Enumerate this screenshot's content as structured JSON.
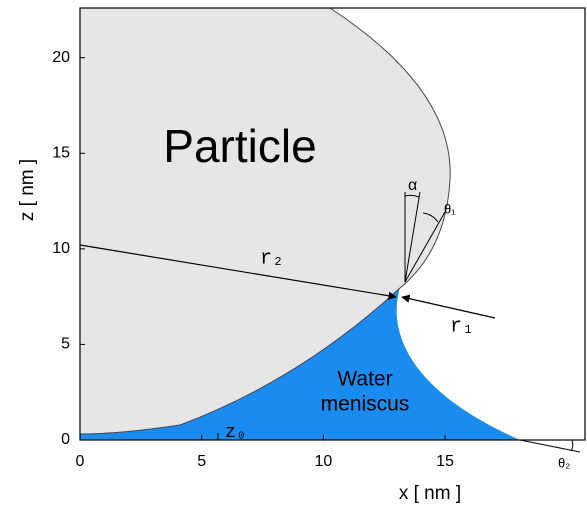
{
  "chart_data": {
    "type": "diagram",
    "xlabel": "x [ nm ]",
    "ylabel": "z [ nm ]",
    "xlim": [
      0,
      20.75
    ],
    "ylim": [
      0,
      22.6
    ],
    "xticks": [
      0,
      5,
      10,
      15
    ],
    "yticks": [
      0,
      5,
      10,
      15,
      20
    ],
    "annotations": {
      "particle": "Particle",
      "water": "Water",
      "meniscus": "meniscus",
      "r2": "r₂",
      "r1": "r₁",
      "z0": "z₀",
      "alpha": "α",
      "theta1": "θ₁",
      "theta2": "θ₂"
    }
  }
}
